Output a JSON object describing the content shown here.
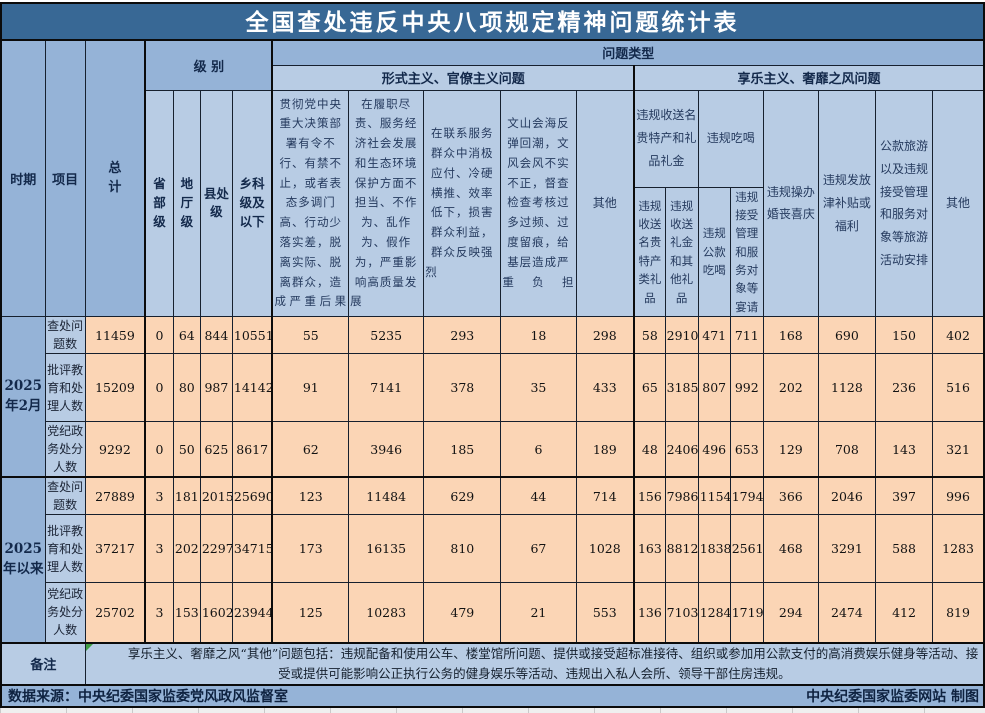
{
  "title": "全国查处违反中央八项规定精神问题统计表",
  "colors": {
    "title_bg": "#386895",
    "header_medium_blue": "#95B3D7",
    "header_light_blue": "#B8CCE4",
    "data_cell_peach": "#FBD5B5",
    "border_dark": "#0B0B0B",
    "footer_bg": "#95B3D7",
    "title_text": "#FFFFFF"
  },
  "header": {
    "period": "时期",
    "item": "项目",
    "total": "总计",
    "level_group": "级 别",
    "problem_type_group": "问题类型",
    "formalism_group": "形式主义、官僚主义问题",
    "hedonism_group": "享乐主义、奢靡之风问题",
    "levels": [
      "省部级",
      "地厅级",
      "县处级",
      "乡科级及以下"
    ],
    "formalism_cols": [
      "贯彻党中央重大决策部署有令不行、有禁不止，或者表态多调门高、行动少落实差，脱离实际、脱离群众，造成严重后果",
      "在履职尽责、服务经济社会发展和生态环境保护方面不担当、不作为、乱作为、假作为，严重影响高质量发展",
      "在联系服务群众中消极应付、冷硬横推、效率低下，损害群众利益，群众反映强烈",
      "文山会海反弹回潮，文风会风不实不正，督查检查考核过多过频、过度留痕，给基层造成严重负担",
      "其他"
    ],
    "hedonism": {
      "gifts_group": "违规收送名贵特产和礼品礼金",
      "dining_group": "违规吃喝",
      "gifts_sub": [
        "违规收送名贵特产类礼品",
        "违规收送礼金和其他礼品"
      ],
      "dining_sub": [
        "违规公款吃喝",
        "违规接受管理和服务对象等宴请"
      ],
      "weddings": "违规操办婚丧喜庆",
      "allowances": "违规发放津补贴或福利",
      "travel": "公款旅游以及违规接受管理和服务对象等旅游活动安排",
      "other": "其他"
    }
  },
  "sections": [
    {
      "period": "2025年2月",
      "rows": [
        {
          "label": "查处问题数",
          "values": [
            11459,
            0,
            64,
            844,
            10551,
            55,
            5235,
            293,
            18,
            298,
            58,
            2910,
            471,
            711,
            168,
            690,
            150,
            402
          ]
        },
        {
          "label": "批评教育和处理人数",
          "values": [
            15209,
            0,
            80,
            987,
            14142,
            91,
            7141,
            378,
            35,
            433,
            65,
            3185,
            807,
            992,
            202,
            1128,
            236,
            516
          ]
        },
        {
          "label": "党纪政务处分人数",
          "values": [
            9292,
            0,
            50,
            625,
            8617,
            62,
            3946,
            185,
            6,
            189,
            48,
            2406,
            496,
            653,
            129,
            708,
            143,
            321
          ]
        }
      ]
    },
    {
      "period": "2025年以来",
      "rows": [
        {
          "label": "查处问题数",
          "values": [
            27889,
            3,
            181,
            2015,
            25690,
            123,
            11484,
            629,
            44,
            714,
            156,
            7986,
            1154,
            1794,
            366,
            2046,
            397,
            996
          ]
        },
        {
          "label": "批评教育和处理人数",
          "values": [
            37217,
            3,
            202,
            2297,
            34715,
            173,
            16135,
            810,
            67,
            1028,
            163,
            8812,
            1838,
            2561,
            468,
            3291,
            588,
            1283
          ]
        },
        {
          "label": "党纪政务处分人数",
          "values": [
            25702,
            3,
            153,
            1602,
            23944,
            125,
            10283,
            479,
            21,
            553,
            136,
            7103,
            1284,
            1719,
            294,
            2474,
            412,
            819
          ]
        }
      ]
    }
  ],
  "notes": {
    "label": "备注",
    "text": "享乐主义、奢靡之风“其他”问题包括：违规配备和使用公车、楼堂馆所问题、提供或接受超标准接待、组织或参加用公款支付的高消费娱乐健身等活动、接受或提供可能影响公正执行公务的健身娱乐等活动、违规出入私人会所、领导干部住房违规。"
  },
  "footer": {
    "source": "数据来源：中央纪委国家监委党风政风监督室",
    "credit": "中央纪委国家监委网站 制图"
  }
}
